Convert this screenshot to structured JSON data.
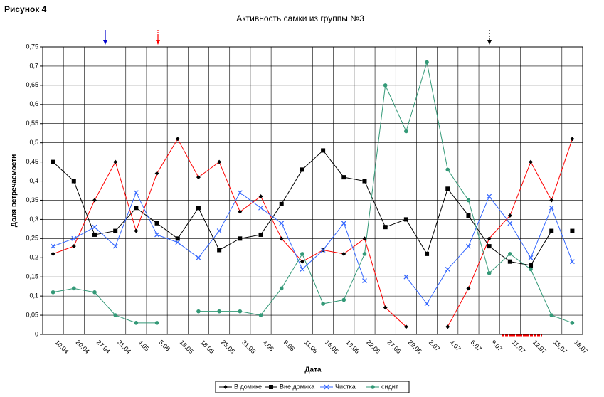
{
  "figure_label": "Рисунок 4",
  "chart_data": {
    "type": "line",
    "title": "Активность самки из группы №3",
    "x_label": "Дата",
    "y_label": "Доля встречаемости",
    "categories": [
      "10.04",
      "20.04",
      "27.04",
      "31.04",
      "4.05",
      "5.06",
      "13.05",
      "18.05",
      "25.05",
      "31.05",
      "4.06",
      "9.06",
      "11.06",
      "16.06",
      "13.06",
      "22.06",
      "27.06",
      "29.06",
      "2.07",
      "4.07",
      "6.07",
      "9.07",
      "11.07",
      "12.07",
      "15.07",
      "18.07"
    ],
    "series": [
      {
        "name": "В домике",
        "color": "#ff0000",
        "marker": "diamond",
        "marker_color": "#000000",
        "values": [
          0.21,
          0.23,
          0.35,
          0.45,
          0.27,
          0.42,
          0.51,
          0.41,
          0.45,
          0.32,
          0.36,
          0.25,
          0.19,
          0.22,
          0.21,
          0.25,
          0.07,
          0.02,
          null,
          0.02,
          0.12,
          0.25,
          0.31,
          0.45,
          0.35,
          0.51
        ]
      },
      {
        "name": "Вне домика",
        "color": "#000000",
        "marker": "square",
        "marker_color": "#000000",
        "values": [
          0.45,
          0.4,
          0.26,
          0.27,
          0.33,
          0.29,
          0.25,
          0.33,
          0.22,
          0.25,
          0.26,
          0.34,
          0.43,
          0.48,
          0.41,
          0.4,
          0.28,
          0.3,
          0.21,
          0.38,
          0.31,
          0.23,
          0.19,
          0.18,
          0.27,
          0.27
        ]
      },
      {
        "name": "Чистка",
        "color": "#3366ff",
        "marker": "cross",
        "marker_color": "#3366ff",
        "values": [
          0.23,
          0.25,
          0.28,
          0.23,
          0.37,
          0.26,
          0.24,
          0.2,
          0.27,
          0.37,
          0.33,
          0.29,
          0.17,
          0.22,
          0.29,
          0.14,
          null,
          0.15,
          0.08,
          0.17,
          0.23,
          0.36,
          0.29,
          0.2,
          0.33,
          0.19
        ]
      },
      {
        "name": "сидит",
        "color": "#339977",
        "marker": "circle",
        "marker_color": "#339977",
        "values": [
          0.11,
          0.12,
          0.11,
          0.05,
          0.03,
          0.03,
          null,
          0.06,
          0.06,
          0.06,
          0.05,
          0.12,
          0.21,
          0.08,
          0.09,
          0.21,
          0.65,
          0.53,
          0.71,
          0.43,
          0.35,
          0.16,
          0.21,
          0.17,
          0.05,
          0.03
        ]
      }
    ],
    "ylim": [
      0,
      0.75
    ],
    "yticks": [
      0,
      {
        "value": 0.05,
        "label": "0,05"
      },
      {
        "value": 0.1,
        "label": "0,1"
      },
      {
        "value": 0.15,
        "label": "0,15"
      },
      {
        "value": 0.2,
        "label": "0,2"
      },
      {
        "value": 0.25,
        "label": "0,25"
      },
      {
        "value": 0.3,
        "label": "0,3"
      },
      {
        "value": 0.35,
        "label": "0,35"
      },
      {
        "value": 0.4,
        "label": "0,4"
      },
      {
        "value": 0.45,
        "label": "0,45"
      },
      {
        "value": 0.5,
        "label": "0,5"
      },
      {
        "value": 0.55,
        "label": "0,55"
      },
      {
        "value": 0.6,
        "label": "0,6"
      },
      {
        "value": 0.65,
        "label": "0,65"
      },
      {
        "value": 0.7,
        "label": "0,7"
      },
      {
        "value": 0.75,
        "label": "0,75"
      }
    ],
    "grid": true,
    "legend": "bottom"
  }
}
